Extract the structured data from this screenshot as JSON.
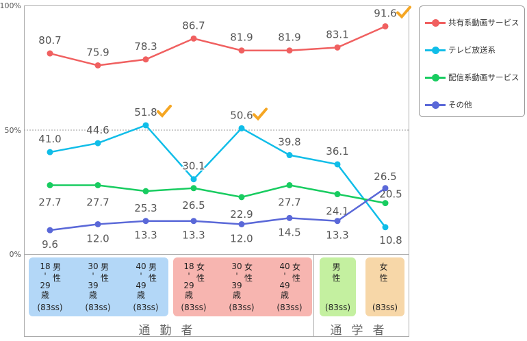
{
  "chart_data": {
    "type": "line",
    "yticks": [
      "100%",
      "50%",
      "0%"
    ],
    "ylim": [
      0,
      100
    ],
    "categories": [
      {
        "age": [
          "18",
          "29"
        ],
        "sex": [
          "男",
          "性"
        ],
        "suffix": "歳",
        "n": "(83ss)",
        "group": 0
      },
      {
        "age": [
          "30",
          "39"
        ],
        "sex": [
          "男",
          "性"
        ],
        "suffix": "歳",
        "n": "(83ss)",
        "group": 0
      },
      {
        "age": [
          "40",
          "49"
        ],
        "sex": [
          "男",
          "性"
        ],
        "suffix": "歳",
        "n": "(83ss)",
        "group": 0
      },
      {
        "age": [
          "18",
          "29"
        ],
        "sex": [
          "女",
          "性"
        ],
        "suffix": "歳",
        "n": "(83ss)",
        "group": 0
      },
      {
        "age": [
          "30",
          "39"
        ],
        "sex": [
          "女",
          "性"
        ],
        "suffix": "歳",
        "n": "(83ss)",
        "group": 0
      },
      {
        "age": [
          "40",
          "49"
        ],
        "sex": [
          "女",
          "性"
        ],
        "suffix": "歳",
        "n": "(83ss)",
        "group": 0
      },
      {
        "age": [],
        "sex": [
          "男",
          "性"
        ],
        "suffix": "",
        "n": "(83ss)",
        "group": 1
      },
      {
        "age": [],
        "sex": [
          "女",
          "性"
        ],
        "suffix": "",
        "n": "(83ss)",
        "group": 1
      }
    ],
    "groups": [
      "通勤者",
      "通学者"
    ],
    "category_colors": [
      "#b3d7f7",
      "#b3d7f7",
      "#b3d7f7",
      "#f7b5b0",
      "#f7b5b0",
      "#f7b5b0",
      "#c4f0a0",
      "#f7d7a8"
    ],
    "series": [
      {
        "name": "共有系動画サービス",
        "color": "#f06060",
        "values": [
          80.7,
          75.9,
          78.3,
          86.7,
          81.9,
          81.9,
          83.1,
          91.6
        ],
        "labels": [
          "80.7",
          "75.9",
          "78.3",
          "86.7",
          "81.9",
          "81.9",
          "83.1",
          "91.6"
        ]
      },
      {
        "name": "テレビ放送系",
        "color": "#10bde8",
        "values": [
          41.0,
          44.6,
          51.8,
          30.1,
          50.6,
          39.8,
          36.1,
          10.8
        ],
        "labels": [
          "41.0",
          "44.6",
          "51.8",
          "30.1",
          "50.6",
          "39.8",
          "36.1",
          "10.8"
        ]
      },
      {
        "name": "配信系動画サービス",
        "color": "#18cc60",
        "values": [
          27.7,
          27.7,
          25.3,
          26.5,
          22.9,
          27.7,
          24.1,
          20.5
        ],
        "labels": [
          "27.7",
          "27.7",
          "25.3",
          "26.5",
          "22.9",
          "27.7",
          "24.1",
          "20.5"
        ]
      },
      {
        "name": "その他",
        "color": "#5a68d8",
        "values": [
          9.6,
          12.0,
          13.3,
          13.3,
          12.0,
          14.5,
          13.3,
          26.5
        ],
        "labels": [
          "9.6",
          "12.0",
          "13.3",
          "13.3",
          "12.0",
          "14.5",
          "13.3",
          "26.5"
        ]
      }
    ],
    "highlighted": [
      {
        "series": 0,
        "index": 7
      },
      {
        "series": 1,
        "index": 2
      },
      {
        "series": 1,
        "index": 4
      }
    ],
    "grid": "dashed line at 50%",
    "legend": "right"
  }
}
